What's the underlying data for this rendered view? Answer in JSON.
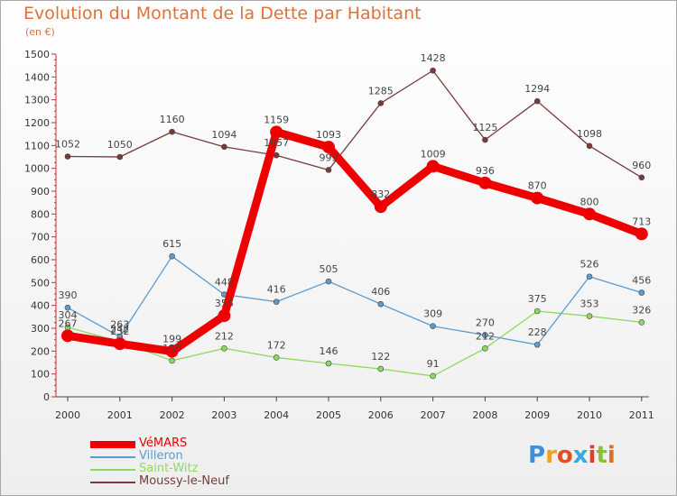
{
  "title": "Evolution du Montant de la Dette par Habitant",
  "subtitle": "(en €)",
  "logo": {
    "letters": [
      "P",
      "r",
      "o",
      "x",
      "i",
      "t",
      "i"
    ],
    "colors": [
      "#3c8fd9",
      "#f0a020",
      "#e05020",
      "#38a8e0",
      "#e04020",
      "#8cc030",
      "#e07020"
    ]
  },
  "chart_data": {
    "type": "line",
    "categories": [
      "2000",
      "2001",
      "2002",
      "2003",
      "2004",
      "2005",
      "2006",
      "2007",
      "2008",
      "2009",
      "2010",
      "2011"
    ],
    "ylim": [
      0,
      1500
    ],
    "yticks": [
      "0",
      "100",
      "200",
      "300",
      "400",
      "500",
      "600",
      "700",
      "800",
      "900",
      "1000",
      "1100",
      "1200",
      "1300",
      "1400",
      "1500"
    ],
    "grid": false,
    "legend_position": "bottom",
    "series": [
      {
        "name": "VéMARS",
        "color": "#ee0000",
        "width": 9,
        "values": [
          267,
          232,
          199,
          355,
          1159,
          1093,
          832,
          1009,
          936,
          870,
          800,
          713
        ]
      },
      {
        "name": "Villeron",
        "color": "#5b9bd0",
        "width": 1.3,
        "values": [
          390,
          263,
          615,
          448,
          416,
          505,
          406,
          309,
          270,
          228,
          526,
          456
        ]
      },
      {
        "name": "Saint-Witz",
        "color": "#8fd860",
        "width": 1.3,
        "values": [
          304,
          242,
          158,
          212,
          172,
          146,
          122,
          91,
          212,
          375,
          353,
          326
        ]
      },
      {
        "name": "Moussy-le-Neuf",
        "color": "#7a3a3a",
        "width": 1.3,
        "values": [
          1052,
          1050,
          1160,
          1094,
          1057,
          993,
          1285,
          1428,
          1125,
          1294,
          1098,
          960
        ]
      }
    ]
  }
}
